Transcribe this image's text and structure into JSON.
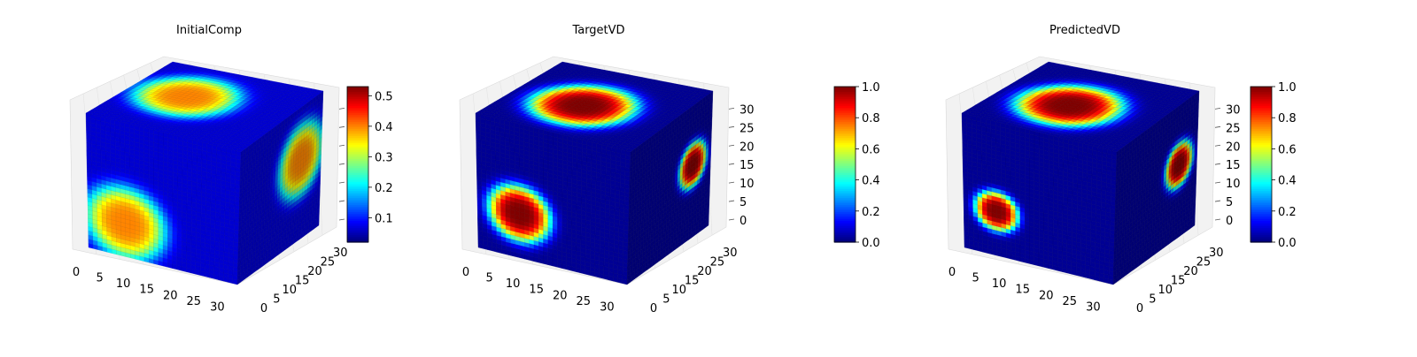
{
  "chart_data": [
    {
      "type": "voxel3d",
      "title": "InitialComp",
      "xlabel": "",
      "ylabel": "",
      "zlabel": "",
      "grid": true,
      "colormap": "jet",
      "value_range": [
        0.02,
        0.53
      ],
      "x_ticks": [
        0,
        5,
        10,
        15,
        20,
        25,
        30
      ],
      "y_ticks": [
        0,
        5,
        10,
        15,
        20,
        25,
        30
      ],
      "z_ticks": [],
      "colorbar": {
        "ticks": [
          0.1,
          0.2,
          0.3,
          0.4,
          0.5
        ],
        "min": 0.02,
        "max": 0.53
      },
      "blobs": [
        {
          "face": "top",
          "u": 0.35,
          "v": 0.55,
          "r": 0.3,
          "value": 0.4
        },
        {
          "face": "front",
          "u": 0.25,
          "v": 0.25,
          "r": 0.26,
          "value": 0.4
        },
        {
          "face": "right",
          "u": 0.75,
          "v": 0.6,
          "r": 0.26,
          "value": 0.4
        }
      ]
    },
    {
      "type": "voxel3d",
      "title": "TargetVD",
      "xlabel": "",
      "ylabel": "",
      "zlabel": "",
      "grid": true,
      "colormap": "jet",
      "value_range": [
        0,
        1
      ],
      "x_ticks": [
        0,
        5,
        10,
        15,
        20,
        25,
        30
      ],
      "y_ticks": [
        0,
        5,
        10,
        15,
        20,
        25,
        30
      ],
      "z_ticks": [
        0,
        5,
        10,
        15,
        20,
        25,
        30
      ],
      "colorbar": {
        "ticks": [
          0.0,
          0.2,
          0.4,
          0.6,
          0.8,
          1.0
        ],
        "min": 0,
        "max": 1
      },
      "blobs": [
        {
          "face": "top",
          "u": 0.45,
          "v": 0.45,
          "r": 0.3,
          "value": 1.0
        },
        {
          "face": "front",
          "u": 0.28,
          "v": 0.33,
          "r": 0.2,
          "value": 1.0
        },
        {
          "face": "right",
          "u": 0.78,
          "v": 0.55,
          "r": 0.16,
          "value": 1.0
        }
      ]
    },
    {
      "type": "voxel3d",
      "title": "PredictedVD",
      "xlabel": "",
      "ylabel": "",
      "zlabel": "",
      "grid": true,
      "colormap": "jet",
      "value_range": [
        0,
        1
      ],
      "x_ticks": [
        0,
        5,
        10,
        15,
        20,
        25,
        30
      ],
      "y_ticks": [
        0,
        5,
        10,
        15,
        20,
        25,
        30
      ],
      "z_ticks": [
        0,
        5,
        10,
        15,
        20,
        25,
        30
      ],
      "colorbar": {
        "ticks": [
          0.0,
          0.2,
          0.4,
          0.6,
          0.8,
          1.0
        ],
        "min": 0,
        "max": 1
      },
      "blobs": [
        {
          "face": "top",
          "u": 0.45,
          "v": 0.45,
          "r": 0.3,
          "value": 1.0
        },
        {
          "face": "front",
          "u": 0.22,
          "v": 0.33,
          "r": 0.14,
          "value": 1.0
        },
        {
          "face": "right",
          "u": 0.78,
          "v": 0.55,
          "r": 0.16,
          "value": 1.0
        }
      ]
    }
  ]
}
